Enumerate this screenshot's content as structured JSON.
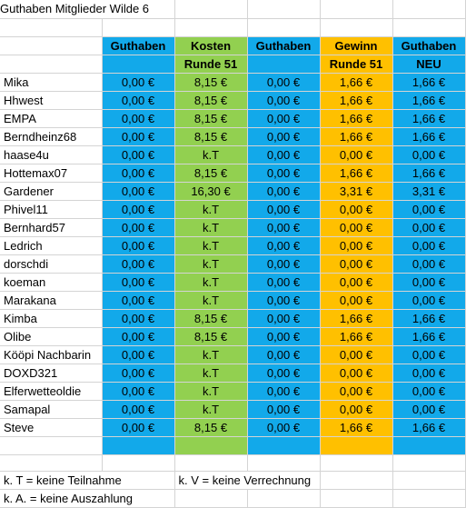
{
  "title": "Guthaben Mitglieder Wilde 6",
  "colors": {
    "blue": "#12a9ea",
    "green": "#92d050",
    "orange": "#ffc000",
    "grid": "#d4d4d4"
  },
  "headers": [
    {
      "line1": "Guthaben",
      "line2": ""
    },
    {
      "line1": "Kosten",
      "line2": "Runde 51"
    },
    {
      "line1": "Guthaben",
      "line2": ""
    },
    {
      "line1": "Gewinn",
      "line2": "Runde 51"
    },
    {
      "line1": "Guthaben",
      "line2": "NEU"
    }
  ],
  "rows": [
    {
      "name": "Mika",
      "values": [
        "0,00 €",
        "8,15 €",
        "0,00 €",
        "1,66 €",
        "1,66 €"
      ]
    },
    {
      "name": "Hhwest",
      "values": [
        "0,00 €",
        "8,15 €",
        "0,00 €",
        "1,66 €",
        "1,66 €"
      ]
    },
    {
      "name": "EMPA",
      "values": [
        "0,00 €",
        "8,15 €",
        "0,00 €",
        "1,66 €",
        "1,66 €"
      ]
    },
    {
      "name": "Berndheinz68",
      "values": [
        "0,00 €",
        "8,15 €",
        "0,00 €",
        "1,66 €",
        "1,66 €"
      ]
    },
    {
      "name": "haase4u",
      "values": [
        "0,00 €",
        "k.T",
        "0,00 €",
        "0,00 €",
        "0,00 €"
      ]
    },
    {
      "name": "Hottemax07",
      "values": [
        "0,00 €",
        "8,15 €",
        "0,00 €",
        "1,66 €",
        "1,66 €"
      ]
    },
    {
      "name": "Gardener",
      "values": [
        "0,00 €",
        "16,30 €",
        "0,00 €",
        "3,31 €",
        "3,31 €"
      ]
    },
    {
      "name": "Phivel11",
      "values": [
        "0,00 €",
        "k.T",
        "0,00 €",
        "0,00 €",
        "0,00 €"
      ]
    },
    {
      "name": "Bernhard57",
      "values": [
        "0,00 €",
        "k.T",
        "0,00 €",
        "0,00 €",
        "0,00 €"
      ]
    },
    {
      "name": "Ledrich",
      "values": [
        "0,00 €",
        "k.T",
        "0,00 €",
        "0,00 €",
        "0,00 €"
      ]
    },
    {
      "name": "dorschdi",
      "values": [
        "0,00 €",
        "k.T",
        "0,00 €",
        "0,00 €",
        "0,00 €"
      ]
    },
    {
      "name": "koeman",
      "values": [
        "0,00 €",
        "k.T",
        "0,00 €",
        "0,00 €",
        "0,00 €"
      ]
    },
    {
      "name": "Marakana",
      "values": [
        "0,00 €",
        "k.T",
        "0,00 €",
        "0,00 €",
        "0,00 €"
      ]
    },
    {
      "name": "Kimba",
      "values": [
        "0,00 €",
        "8,15 €",
        "0,00 €",
        "1,66 €",
        "1,66 €"
      ]
    },
    {
      "name": "Olibe",
      "values": [
        "0,00 €",
        "8,15 €",
        "0,00 €",
        "1,66 €",
        "1,66 €"
      ]
    },
    {
      "name": "Kööpi Nachbarin",
      "values": [
        "0,00 €",
        "k.T",
        "0,00 €",
        "0,00 €",
        "0,00 €"
      ]
    },
    {
      "name": "DOXD321",
      "values": [
        "0,00 €",
        "k.T",
        "0,00 €",
        "0,00 €",
        "0,00 €"
      ]
    },
    {
      "name": "Elferwetteoldie",
      "values": [
        "0,00 €",
        "k.T",
        "0,00 €",
        "0,00 €",
        "0,00 €"
      ]
    },
    {
      "name": "Samapal",
      "values": [
        "0,00 €",
        "k.T",
        "0,00 €",
        "0,00 €",
        "0,00 €"
      ]
    },
    {
      "name": "Steve",
      "values": [
        "0,00 €",
        "8,15 €",
        "0,00 €",
        "1,66 €",
        "1,66 €"
      ]
    }
  ],
  "legend": {
    "kt": "k. T = keine Teilnahme",
    "kv": "k. V = keine Verrechnung",
    "ka": "k. A. = keine Auszahlung"
  }
}
